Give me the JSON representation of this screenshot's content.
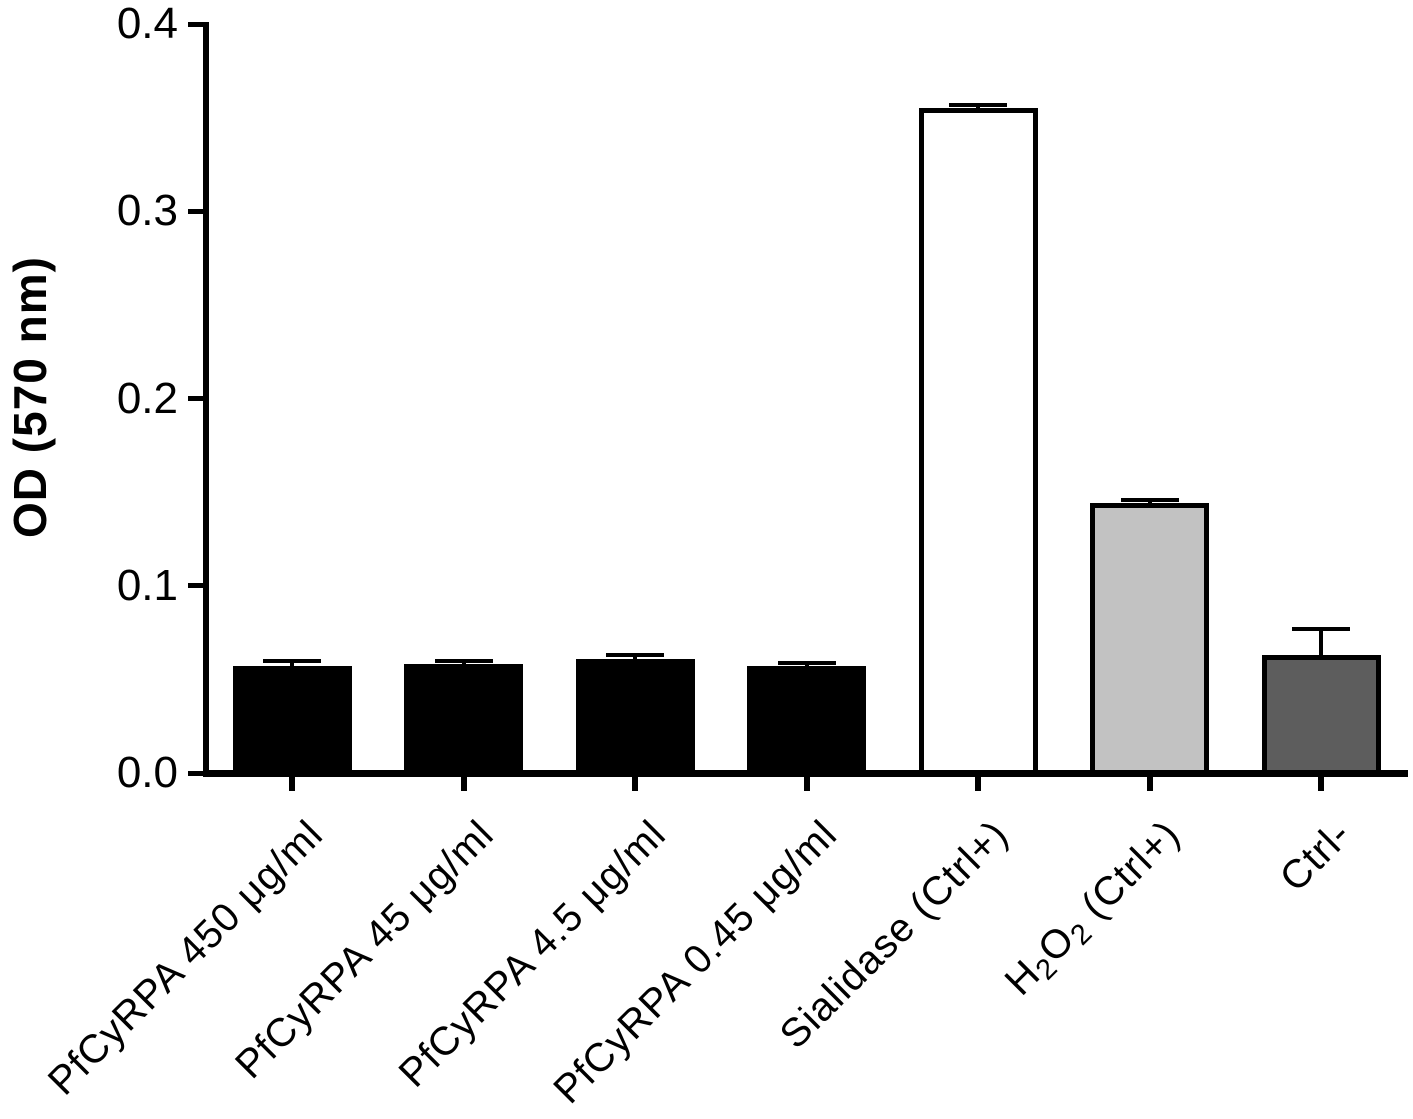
{
  "figure": {
    "background_color": "#ffffff",
    "axis_color": "#000000",
    "text_color": "#000000"
  },
  "chart_data": {
    "type": "bar",
    "title": "",
    "xlabel": "",
    "ylabel": "OD (570 nm)",
    "ylim": [
      0.0,
      0.4
    ],
    "yticks": [
      0.0,
      0.1,
      0.2,
      0.3,
      0.4
    ],
    "ytick_labels": [
      "0.0",
      "0.1",
      "0.2",
      "0.3",
      "0.4"
    ],
    "grid": false,
    "legend": null,
    "categories": [
      "PfCyRPA 450 μg/ml",
      "PfCyRPA 45 μg/ml",
      "PfCyRPA 4.5 μg/ml",
      "PfCyRPA 0.45 μg/ml",
      "Sialidase (Ctrl+)",
      "H2O2 (Ctrl+)",
      "Ctrl-"
    ],
    "category_parts": [
      [
        {
          "t": "PfCyRPA 450 μg/ml"
        }
      ],
      [
        {
          "t": "PfCyRPA 45 μg/ml"
        }
      ],
      [
        {
          "t": "PfCyRPA 4.5 μg/ml"
        }
      ],
      [
        {
          "t": "PfCyRPA 0.45 μg/ml"
        }
      ],
      [
        {
          "t": "Sialidase (Ctrl+)"
        }
      ],
      [
        {
          "t": "H"
        },
        {
          "t": "2",
          "sub": true
        },
        {
          "t": "O"
        },
        {
          "t": "2",
          "sub": true
        },
        {
          "t": " (Ctrl+)"
        }
      ],
      [
        {
          "t": "Ctrl-"
        }
      ]
    ],
    "series": [
      {
        "name": "OD (570 nm)",
        "values": [
          0.057,
          0.058,
          0.061,
          0.057,
          0.355,
          0.144,
          0.063
        ],
        "errors": [
          0.003,
          0.002,
          0.002,
          0.002,
          0.002,
          0.002,
          0.014
        ]
      }
    ],
    "bar_colors": [
      "#000000",
      "#000000",
      "#000000",
      "#000000",
      "#ffffff",
      "#c2c2c2",
      "#5d5d5d"
    ],
    "bar_border_color": "#000000",
    "error_bar_color": "#000000"
  }
}
